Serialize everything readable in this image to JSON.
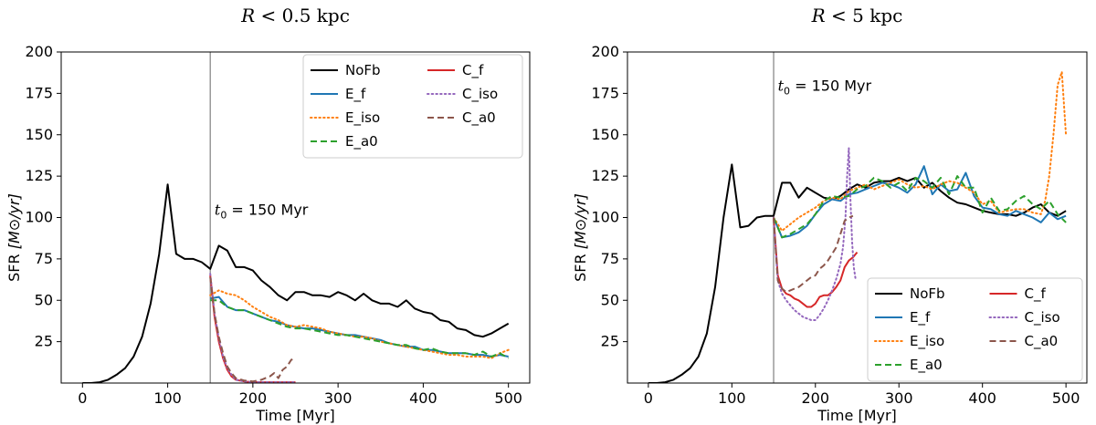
{
  "chart_data": [
    {
      "type": "line",
      "title_var": "R",
      "title_rest": " < 0.5 kpc",
      "xlabel": "Time    [Myr]",
      "ylabel_main": "SFR",
      "ylabel_unit": "[M⊙/yr]",
      "xlim": [
        -25,
        525
      ],
      "ylim": [
        0,
        200
      ],
      "xticks": [
        0,
        100,
        200,
        300,
        400,
        500
      ],
      "yticks": [
        25,
        50,
        75,
        100,
        125,
        150,
        175,
        200
      ],
      "vline_x": 150,
      "annotation": {
        "text_sub": "t",
        "text_idx": "0",
        "text_rest": " = 150 Myr",
        "x": 155,
        "y": 105
      },
      "legend_location": "top-right",
      "series": [
        {
          "name": "NoFb",
          "color": "#000000",
          "style": "solid",
          "x": [
            0,
            10,
            20,
            30,
            40,
            50,
            60,
            70,
            80,
            90,
            100,
            110,
            120,
            130,
            140,
            150,
            160,
            170,
            180,
            190,
            200,
            210,
            220,
            230,
            240,
            250,
            260,
            270,
            280,
            290,
            300,
            310,
            320,
            330,
            340,
            350,
            360,
            370,
            380,
            390,
            400,
            410,
            420,
            430,
            440,
            450,
            460,
            470,
            480,
            490,
            500
          ],
          "y": [
            0,
            0,
            0.5,
            2,
            5,
            9,
            16,
            28,
            48,
            78,
            120,
            78,
            75,
            75,
            73,
            69,
            83,
            80,
            70,
            70,
            68,
            62,
            58,
            53,
            50,
            55,
            55,
            53,
            53,
            52,
            55,
            53,
            50,
            54,
            50,
            48,
            48,
            46,
            50,
            45,
            43,
            42,
            38,
            37,
            33,
            32,
            29,
            28,
            30,
            33,
            36
          ]
        },
        {
          "name": "E_f",
          "color": "#1f77b4",
          "style": "solid",
          "x": [
            150,
            160,
            170,
            180,
            190,
            200,
            210,
            220,
            230,
            240,
            250,
            260,
            270,
            280,
            290,
            300,
            310,
            320,
            330,
            340,
            350,
            360,
            370,
            380,
            390,
            400,
            410,
            420,
            430,
            440,
            450,
            460,
            470,
            480,
            490,
            500
          ],
          "y": [
            51,
            52,
            46,
            44,
            44,
            42,
            40,
            38,
            37,
            35,
            34,
            33,
            33,
            32,
            31,
            30,
            29,
            29,
            28,
            27,
            26,
            24,
            23,
            22,
            22,
            20,
            20,
            19,
            18,
            18,
            18,
            17,
            17,
            16,
            17,
            16
          ]
        },
        {
          "name": "E_iso",
          "color": "#ff7f0e",
          "style": "dotted",
          "x": [
            150,
            160,
            170,
            180,
            190,
            200,
            210,
            220,
            230,
            240,
            250,
            260,
            270,
            280,
            290,
            300,
            310,
            320,
            330,
            340,
            350,
            360,
            370,
            380,
            390,
            400,
            410,
            420,
            430,
            440,
            450,
            460,
            470,
            480,
            490,
            500
          ],
          "y": [
            53,
            56,
            54,
            53,
            50,
            46,
            43,
            40,
            38,
            35,
            34,
            35,
            34,
            33,
            31,
            30,
            29,
            28,
            28,
            27,
            25,
            24,
            23,
            22,
            21,
            20,
            19,
            18,
            17,
            17,
            16,
            16,
            16,
            15,
            18,
            20
          ]
        },
        {
          "name": "E_a0",
          "color": "#2ca02c",
          "style": "dashed",
          "x": [
            150,
            160,
            170,
            180,
            190,
            200,
            210,
            220,
            230,
            240,
            250,
            260,
            270,
            280,
            290,
            300,
            310,
            320,
            330,
            340,
            350,
            360,
            370,
            380,
            390,
            400,
            410,
            420,
            430,
            440,
            450,
            460,
            470,
            480,
            490,
            500
          ],
          "y": [
            50,
            50,
            46,
            44,
            44,
            42,
            40,
            38,
            36,
            34,
            33,
            33,
            32,
            31,
            30,
            29,
            29,
            28,
            27,
            26,
            25,
            24,
            23,
            23,
            21,
            20,
            21,
            19,
            18,
            18,
            18,
            17,
            19,
            16,
            18,
            15
          ]
        },
        {
          "name": "C_f",
          "color": "#d62728",
          "style": "solid",
          "x": [
            150,
            155,
            160,
            165,
            170,
            175,
            180,
            190,
            200,
            210,
            220,
            230,
            240,
            250
          ],
          "y": [
            65,
            40,
            25,
            15,
            8,
            4,
            2,
            1,
            0.5,
            0.5,
            0.5,
            0.5,
            0.5,
            0.5
          ]
        },
        {
          "name": "C_iso",
          "color": "#9467bd",
          "style": "dotted",
          "x": [
            150,
            155,
            160,
            165,
            170,
            175,
            180,
            190,
            200,
            210,
            220,
            230,
            240,
            250
          ],
          "y": [
            66,
            42,
            27,
            16,
            9,
            5,
            2,
            1,
            0.5,
            0.5,
            0.5,
            0.5,
            0.5,
            0.5
          ]
        },
        {
          "name": "C_a0",
          "color": "#8c564b",
          "style": "dashed",
          "x": [
            150,
            155,
            160,
            165,
            170,
            175,
            180,
            190,
            200,
            210,
            220,
            225,
            230,
            235,
            240,
            245,
            250
          ],
          "y": [
            64,
            42,
            28,
            18,
            10,
            6,
            3,
            1.5,
            1,
            2,
            4,
            6,
            3,
            8,
            10,
            14,
            15
          ]
        }
      ]
    },
    {
      "type": "line",
      "title_var": "R",
      "title_rest": " < 5 kpc",
      "xlabel": "Time    [Myr]",
      "ylabel_main": "SFR",
      "ylabel_unit": "[M⊙/yr]",
      "xlim": [
        -25,
        525
      ],
      "ylim": [
        0,
        200
      ],
      "xticks": [
        0,
        100,
        200,
        300,
        400,
        500
      ],
      "yticks": [
        25,
        50,
        75,
        100,
        125,
        150,
        175,
        200
      ],
      "vline_x": 150,
      "annotation": {
        "text_sub": "t",
        "text_idx": "0",
        "text_rest": " = 150 Myr",
        "x": 155,
        "y": 180
      },
      "legend_location": "bottom-right",
      "series": [
        {
          "name": "NoFb",
          "color": "#000000",
          "style": "solid",
          "x": [
            0,
            10,
            20,
            30,
            40,
            50,
            60,
            70,
            80,
            90,
            100,
            110,
            120,
            130,
            140,
            150,
            160,
            170,
            180,
            190,
            200,
            210,
            220,
            230,
            240,
            250,
            260,
            270,
            280,
            290,
            300,
            310,
            320,
            330,
            340,
            350,
            360,
            370,
            380,
            390,
            400,
            410,
            420,
            430,
            440,
            450,
            460,
            470,
            480,
            490,
            500
          ],
          "y": [
            0,
            0,
            0.5,
            2,
            5,
            9,
            16,
            30,
            58,
            100,
            132,
            94,
            95,
            100,
            101,
            101,
            121,
            121,
            112,
            118,
            115,
            112,
            111,
            113,
            117,
            120,
            118,
            121,
            122,
            122,
            124,
            122,
            124,
            118,
            121,
            116,
            112,
            109,
            108,
            106,
            104,
            103,
            102,
            102,
            101,
            103,
            106,
            108,
            103,
            101,
            104
          ]
        },
        {
          "name": "E_f",
          "color": "#1f77b4",
          "style": "solid",
          "x": [
            150,
            160,
            170,
            180,
            190,
            200,
            210,
            220,
            230,
            240,
            250,
            260,
            270,
            280,
            290,
            300,
            310,
            320,
            330,
            340,
            350,
            360,
            370,
            380,
            390,
            400,
            410,
            420,
            430,
            440,
            450,
            460,
            470,
            480,
            490,
            500
          ],
          "y": [
            100,
            88,
            89,
            91,
            95,
            102,
            108,
            111,
            110,
            114,
            115,
            117,
            119,
            121,
            120,
            118,
            115,
            120,
            131,
            114,
            120,
            116,
            117,
            127,
            113,
            106,
            105,
            102,
            101,
            104,
            102,
            100,
            97,
            103,
            99,
            101
          ]
        },
        {
          "name": "E_iso",
          "color": "#ff7f0e",
          "style": "dotted",
          "x": [
            150,
            160,
            170,
            180,
            190,
            200,
            210,
            220,
            230,
            240,
            250,
            260,
            270,
            280,
            290,
            300,
            310,
            320,
            330,
            340,
            350,
            360,
            370,
            380,
            390,
            400,
            410,
            420,
            430,
            440,
            450,
            460,
            470,
            475,
            480,
            485,
            490,
            495,
            500
          ],
          "y": [
            100,
            92,
            96,
            100,
            103,
            106,
            110,
            112,
            111,
            116,
            118,
            120,
            117,
            119,
            121,
            123,
            120,
            118,
            119,
            117,
            120,
            122,
            121,
            118,
            115,
            108,
            110,
            103,
            104,
            105,
            105,
            103,
            102,
            110,
            125,
            150,
            180,
            188,
            150
          ]
        },
        {
          "name": "E_a0",
          "color": "#2ca02c",
          "style": "dashed",
          "x": [
            150,
            160,
            170,
            180,
            190,
            200,
            210,
            220,
            230,
            240,
            250,
            260,
            270,
            280,
            290,
            300,
            310,
            320,
            330,
            340,
            350,
            360,
            370,
            380,
            390,
            400,
            410,
            420,
            430,
            440,
            450,
            460,
            470,
            480,
            490,
            500
          ],
          "y": [
            100,
            88,
            90,
            93,
            96,
            102,
            110,
            113,
            112,
            113,
            117,
            119,
            124,
            122,
            118,
            121,
            116,
            124,
            122,
            118,
            124,
            114,
            125,
            118,
            118,
            103,
            112,
            104,
            105,
            110,
            113,
            108,
            105,
            110,
            102,
            97
          ]
        },
        {
          "name": "C_f",
          "color": "#d62728",
          "style": "solid",
          "x": [
            150,
            155,
            160,
            165,
            170,
            175,
            180,
            185,
            190,
            195,
            200,
            205,
            210,
            215,
            220,
            225,
            230,
            235,
            240,
            245,
            250
          ],
          "y": [
            100,
            65,
            57,
            54,
            53,
            51,
            50,
            48,
            46,
            46,
            48,
            52,
            53,
            53,
            55,
            58,
            62,
            70,
            74,
            76,
            79
          ]
        },
        {
          "name": "C_iso",
          "color": "#9467bd",
          "style": "dotted",
          "x": [
            150,
            155,
            160,
            165,
            170,
            175,
            180,
            185,
            190,
            195,
            200,
            205,
            210,
            215,
            220,
            225,
            230,
            233,
            236,
            238,
            240,
            242,
            244,
            246,
            248
          ],
          "y": [
            100,
            62,
            54,
            50,
            47,
            44,
            42,
            40,
            39,
            38,
            38,
            41,
            45,
            50,
            56,
            63,
            72,
            82,
            100,
            125,
            142,
            110,
            85,
            70,
            63
          ]
        },
        {
          "name": "C_a0",
          "color": "#8c564b",
          "style": "dashed",
          "x": [
            150,
            155,
            160,
            165,
            170,
            175,
            180,
            185,
            190,
            195,
            200,
            205,
            210,
            215,
            220,
            225,
            230,
            235,
            240,
            245
          ],
          "y": [
            100,
            62,
            57,
            55,
            56,
            57,
            58,
            60,
            62,
            64,
            65,
            69,
            71,
            74,
            78,
            82,
            90,
            98,
            100,
            101
          ]
        }
      ]
    }
  ]
}
